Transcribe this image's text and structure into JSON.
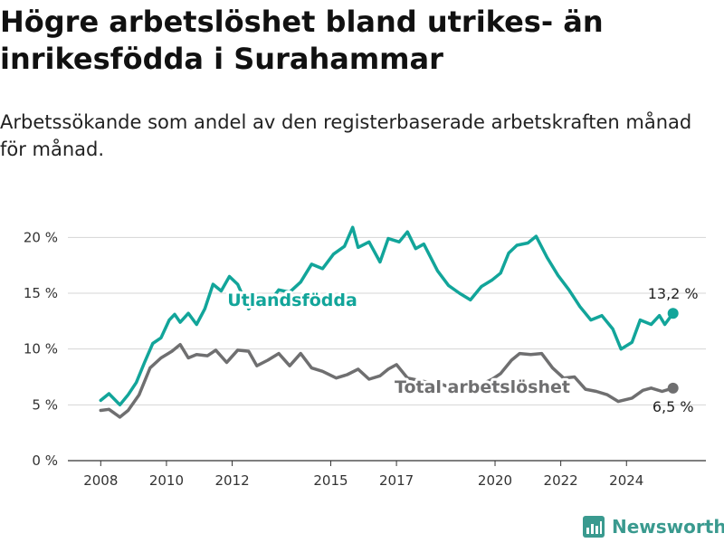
{
  "title": "Högre arbetslöshet bland utrikes- än inrikesfödda i Surahammar",
  "subtitle": "Arbetssökande som andel av den registerbaserade arbetskraften månad för månad.",
  "brand": "Newsworthy",
  "chart_data": {
    "type": "line",
    "x_unit": "date",
    "xlim": [
      "2007-01",
      "2026-06"
    ],
    "ylim": [
      0,
      21
    ],
    "y_ticks": [
      0,
      5,
      10,
      15,
      20
    ],
    "y_tick_labels": [
      "0 %",
      "5 %",
      "10 %",
      "15 %",
      "20 %"
    ],
    "x_ticks": [
      2008,
      2010,
      2012,
      2015,
      2017,
      2020,
      2022,
      2024
    ],
    "x_tick_labels": [
      "2008",
      "2010",
      "2012",
      "2015",
      "2017",
      "2020",
      "2022",
      "2024"
    ],
    "grid": "horizontal",
    "series": [
      {
        "name": "Utlandsfödda",
        "color": "#12a59a",
        "end_label": "13,2 %",
        "points": [
          [
            "2008-01",
            5.4
          ],
          [
            "2008-04",
            6.0
          ],
          [
            "2008-08",
            5.0
          ],
          [
            "2008-11",
            5.9
          ],
          [
            "2009-02",
            7.0
          ],
          [
            "2009-05",
            8.8
          ],
          [
            "2009-08",
            10.5
          ],
          [
            "2009-11",
            11.0
          ],
          [
            "2010-02",
            12.6
          ],
          [
            "2010-04",
            13.1
          ],
          [
            "2010-06",
            12.4
          ],
          [
            "2010-09",
            13.2
          ],
          [
            "2010-12",
            12.2
          ],
          [
            "2011-03",
            13.6
          ],
          [
            "2011-06",
            15.8
          ],
          [
            "2011-09",
            15.2
          ],
          [
            "2011-12",
            16.5
          ],
          [
            "2012-03",
            15.8
          ],
          [
            "2012-07",
            13.6
          ],
          [
            "2012-10",
            14.3
          ],
          [
            "2013-02",
            14.0
          ],
          [
            "2013-06",
            15.3
          ],
          [
            "2013-10",
            15.1
          ],
          [
            "2014-02",
            16.0
          ],
          [
            "2014-06",
            17.6
          ],
          [
            "2014-10",
            17.2
          ],
          [
            "2015-02",
            18.5
          ],
          [
            "2015-06",
            19.2
          ],
          [
            "2015-09",
            20.9
          ],
          [
            "2015-11",
            19.1
          ],
          [
            "2016-03",
            19.6
          ],
          [
            "2016-07",
            17.8
          ],
          [
            "2016-10",
            19.9
          ],
          [
            "2017-02",
            19.6
          ],
          [
            "2017-05",
            20.5
          ],
          [
            "2017-08",
            19.0
          ],
          [
            "2017-11",
            19.4
          ],
          [
            "2018-04",
            17.0
          ],
          [
            "2018-08",
            15.7
          ],
          [
            "2018-12",
            15.0
          ],
          [
            "2019-04",
            14.4
          ],
          [
            "2019-08",
            15.6
          ],
          [
            "2019-12",
            16.2
          ],
          [
            "2020-03",
            16.8
          ],
          [
            "2020-06",
            18.6
          ],
          [
            "2020-09",
            19.3
          ],
          [
            "2021-01",
            19.5
          ],
          [
            "2021-04",
            20.1
          ],
          [
            "2021-08",
            18.2
          ],
          [
            "2021-12",
            16.6
          ],
          [
            "2022-04",
            15.3
          ],
          [
            "2022-08",
            13.8
          ],
          [
            "2022-12",
            12.6
          ],
          [
            "2023-04",
            13.0
          ],
          [
            "2023-08",
            11.8
          ],
          [
            "2023-11",
            10.0
          ],
          [
            "2024-03",
            10.6
          ],
          [
            "2024-06",
            12.6
          ],
          [
            "2024-10",
            12.2
          ],
          [
            "2025-01",
            13.0
          ],
          [
            "2025-03",
            12.2
          ],
          [
            "2025-06",
            13.2
          ]
        ]
      },
      {
        "name": "Total arbetslöshet",
        "color": "#6f6f70",
        "end_label": "6,5 %",
        "points": [
          [
            "2008-01",
            4.5
          ],
          [
            "2008-04",
            4.6
          ],
          [
            "2008-08",
            3.9
          ],
          [
            "2008-11",
            4.5
          ],
          [
            "2009-03",
            5.9
          ],
          [
            "2009-07",
            8.3
          ],
          [
            "2009-11",
            9.2
          ],
          [
            "2010-03",
            9.8
          ],
          [
            "2010-06",
            10.4
          ],
          [
            "2010-09",
            9.2
          ],
          [
            "2010-12",
            9.5
          ],
          [
            "2011-04",
            9.4
          ],
          [
            "2011-07",
            9.9
          ],
          [
            "2011-11",
            8.8
          ],
          [
            "2012-03",
            9.9
          ],
          [
            "2012-07",
            9.8
          ],
          [
            "2012-10",
            8.5
          ],
          [
            "2013-02",
            9.0
          ],
          [
            "2013-06",
            9.6
          ],
          [
            "2013-10",
            8.5
          ],
          [
            "2014-02",
            9.6
          ],
          [
            "2014-06",
            8.3
          ],
          [
            "2014-10",
            8.0
          ],
          [
            "2015-03",
            7.4
          ],
          [
            "2015-07",
            7.7
          ],
          [
            "2015-11",
            8.2
          ],
          [
            "2016-03",
            7.3
          ],
          [
            "2016-07",
            7.6
          ],
          [
            "2016-10",
            8.2
          ],
          [
            "2017-01",
            8.6
          ],
          [
            "2017-05",
            7.4
          ],
          [
            "2017-09",
            7.2
          ],
          [
            "2018-01",
            7.0
          ],
          [
            "2018-06",
            6.8
          ],
          [
            "2018-12",
            6.2
          ],
          [
            "2019-06",
            6.6
          ],
          [
            "2019-12",
            7.3
          ],
          [
            "2020-03",
            7.8
          ],
          [
            "2020-07",
            9.0
          ],
          [
            "2020-10",
            9.6
          ],
          [
            "2021-02",
            9.5
          ],
          [
            "2021-06",
            9.6
          ],
          [
            "2021-10",
            8.3
          ],
          [
            "2022-02",
            7.4
          ],
          [
            "2022-06",
            7.5
          ],
          [
            "2022-10",
            6.4
          ],
          [
            "2023-02",
            6.2
          ],
          [
            "2023-06",
            5.9
          ],
          [
            "2023-10",
            5.3
          ],
          [
            "2024-03",
            5.6
          ],
          [
            "2024-07",
            6.3
          ],
          [
            "2024-10",
            6.5
          ],
          [
            "2025-02",
            6.2
          ],
          [
            "2025-06",
            6.5
          ]
        ]
      }
    ]
  }
}
